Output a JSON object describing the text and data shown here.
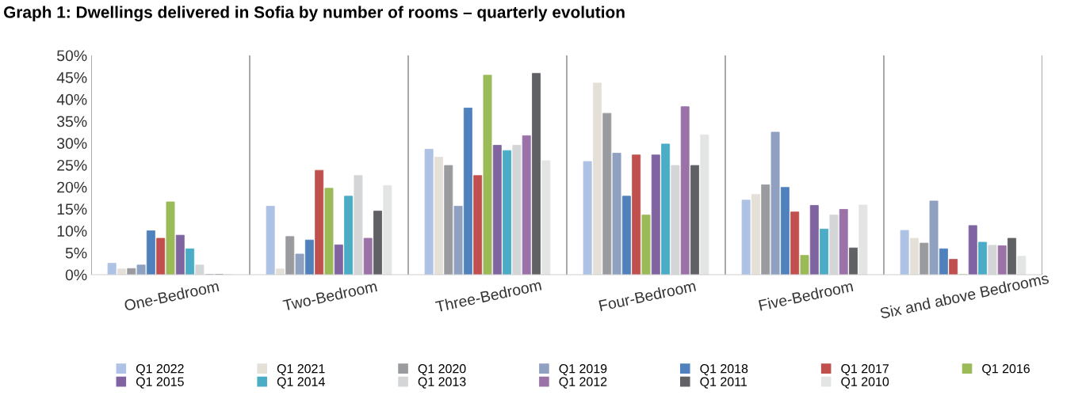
{
  "chart_data": {
    "type": "bar",
    "title": "Graph 1: Dwellings delivered in Sofia by number of rooms – quarterly evolution",
    "categories": [
      "One-Bedroom",
      "Two-Bedroom",
      "Three-Bedroom",
      "Four-Bedroom",
      "Five-Bedroom",
      "Six and above Bedrooms"
    ],
    "series": [
      {
        "name": "Q1 2022",
        "color": "#aec2e6",
        "values": [
          2.6,
          15.6,
          28.6,
          25.8,
          17.0,
          10.1
        ]
      },
      {
        "name": "Q1 2021",
        "color": "#e4e0d8",
        "values": [
          1.3,
          1.3,
          26.8,
          43.7,
          18.3,
          8.3
        ]
      },
      {
        "name": "Q1 2020",
        "color": "#9a9b9e",
        "values": [
          1.4,
          8.7,
          24.9,
          36.8,
          20.5,
          7.2
        ]
      },
      {
        "name": "Q1 2019",
        "color": "#8fa0c0",
        "values": [
          2.2,
          4.7,
          15.6,
          27.7,
          32.5,
          16.8
        ]
      },
      {
        "name": "Q1 2018",
        "color": "#4f81bd",
        "values": [
          10.0,
          7.9,
          38.0,
          17.9,
          19.9,
          5.9
        ]
      },
      {
        "name": "Q1 2017",
        "color": "#c0504d",
        "values": [
          8.3,
          23.8,
          22.6,
          27.3,
          14.3,
          3.5
        ]
      },
      {
        "name": "Q1 2016",
        "color": "#9bbb59",
        "values": [
          16.6,
          19.7,
          45.5,
          13.6,
          4.4,
          0
        ]
      },
      {
        "name": "Q1 2015",
        "color": "#8064a2",
        "values": [
          9.0,
          6.8,
          29.5,
          27.3,
          15.8,
          11.2
        ]
      },
      {
        "name": "Q1 2014",
        "color": "#4bacc6",
        "values": [
          5.9,
          17.9,
          28.3,
          29.8,
          10.4,
          7.4
        ]
      },
      {
        "name": "Q1 2013",
        "color": "#d4d5d7",
        "values": [
          2.2,
          22.6,
          29.5,
          24.9,
          13.6,
          6.7
        ]
      },
      {
        "name": "Q1 2012",
        "color": "#9a72a8",
        "values": [
          0,
          8.3,
          31.7,
          38.3,
          14.9,
          6.6
        ]
      },
      {
        "name": "Q1 2011",
        "color": "#606165",
        "values": [
          0,
          14.5,
          45.9,
          24.9,
          6.1,
          8.3
        ]
      },
      {
        "name": "Q1 2010",
        "color": "#e3e4e4",
        "values": [
          0,
          20.3,
          26.0,
          31.9,
          15.9,
          4.2
        ]
      }
    ],
    "ylim": [
      0,
      50
    ],
    "yticks": [
      {
        "value": 0,
        "label": "0%"
      },
      {
        "value": 5,
        "label": "5%"
      },
      {
        "value": 10,
        "label": "10%"
      },
      {
        "value": 15,
        "label": "15%"
      },
      {
        "value": 20,
        "label": "20%"
      },
      {
        "value": 25,
        "label": "25%"
      },
      {
        "value": 30,
        "label": "30%"
      },
      {
        "value": 35,
        "label": "35%"
      },
      {
        "value": 40,
        "label": "40%"
      },
      {
        "value": 45,
        "label": "45%"
      },
      {
        "value": 50,
        "label": "50%"
      }
    ],
    "grid": "x",
    "legend": "bottom"
  }
}
